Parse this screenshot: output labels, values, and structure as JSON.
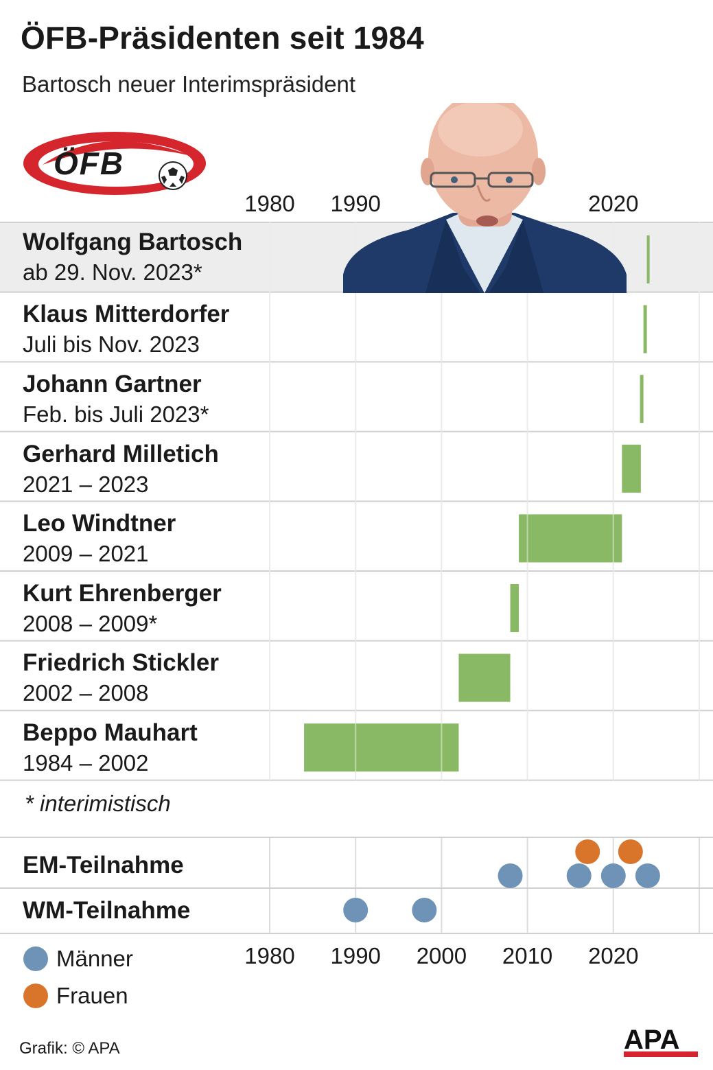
{
  "header": {
    "title": "ÖFB-Präsidenten seit 1984",
    "subtitle": "Bartosch neuer Interimspräsident"
  },
  "logo": {
    "text": "ÖFB"
  },
  "chart_data": {
    "type": "bar",
    "subtype": "timeline",
    "x_ticks_top": [
      "1980",
      "1990",
      "2020"
    ],
    "x_ticks_bottom": [
      "1980",
      "1990",
      "2000",
      "2010",
      "2020"
    ],
    "xlim": [
      1980,
      2030
    ],
    "grid": true,
    "bar_color": "#8ab966",
    "rows": [
      {
        "name": "Wolfgang Bartosch",
        "period": "ab 29. Nov. 2023*",
        "start": 2023.9,
        "end": 2024.1,
        "highlight": true
      },
      {
        "name": "Klaus Mitterdorfer",
        "period": "Juli bis Nov. 2023",
        "start": 2023.5,
        "end": 2023.9
      },
      {
        "name": "Johann Gartner",
        "period": "Feb. bis Juli 2023*",
        "start": 2023.1,
        "end": 2023.5
      },
      {
        "name": "Gerhard Milletich",
        "period": "2021 – 2023",
        "start": 2021.0,
        "end": 2023.2
      },
      {
        "name": "Leo Windtner",
        "period": "2009 – 2021",
        "start": 2009.0,
        "end": 2021.0
      },
      {
        "name": "Kurt Ehrenberger",
        "period": "2008 – 2009*",
        "start": 2008.0,
        "end": 2009.0
      },
      {
        "name": "Friedrich Stickler",
        "period": "2002 – 2008",
        "start": 2002.0,
        "end": 2008.0
      },
      {
        "name": "Beppo Mauhart",
        "period": "1984 – 2002",
        "start": 1984.0,
        "end": 2002.0
      }
    ],
    "participation": [
      {
        "label": "EM-Teilnahme",
        "maenner": [
          2008,
          2016,
          2020,
          2024
        ],
        "frauen": [
          2017,
          2022
        ]
      },
      {
        "label": "WM-Teilnahme",
        "maenner": [
          1990,
          1998
        ],
        "frauen": []
      }
    ],
    "legend": [
      {
        "label": "Männer",
        "color": "#6e93b7"
      },
      {
        "label": "Frauen",
        "color": "#d8752b"
      }
    ]
  },
  "note": "* interimistisch",
  "credit": "Grafik: © APA",
  "apa_logo": "APA"
}
